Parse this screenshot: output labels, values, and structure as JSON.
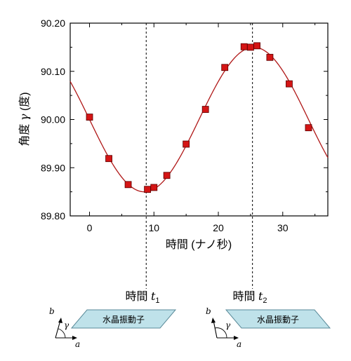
{
  "chart_data": {
    "type": "scatter",
    "xlabel": "時間 (ナノ秒)",
    "ylabel_main": "角度",
    "ylabel_symbol": "γ",
    "ylabel_unit": "(度)",
    "xlim": [
      -3,
      37
    ],
    "ylim": [
      89.8,
      90.2
    ],
    "xticks": [
      0,
      10,
      20,
      30
    ],
    "yticks": [
      89.8,
      89.9,
      90.0,
      90.1,
      90.2
    ],
    "ytick_labels": [
      "89.80",
      "89.90",
      "90.00",
      "90.10",
      "90.20"
    ],
    "grid": false,
    "marker_color": "#d41515",
    "fit_color": "#b01818",
    "series": [
      {
        "x": [
          0,
          3,
          6,
          9,
          10,
          12,
          15,
          18,
          21,
          24,
          25,
          26,
          28,
          31,
          34
        ],
        "y": [
          90.005,
          89.919,
          89.865,
          89.855,
          89.859,
          89.884,
          89.949,
          90.021,
          90.108,
          90.151,
          90.15,
          90.153,
          90.129,
          90.074,
          89.983
        ]
      }
    ],
    "fit": {
      "type": "sinusoid",
      "mean": 90.0,
      "amplitude": 0.15,
      "period": 34.0,
      "phase_min_at": 8.5
    },
    "markers": [
      {
        "x": 8.8,
        "label": "時間",
        "symbol": "t",
        "subscript": "1"
      },
      {
        "x": 25.3,
        "label": "時間",
        "symbol": "t",
        "subscript": "2"
      }
    ]
  },
  "crystals": [
    {
      "label": "水晶振動子",
      "axis_a": "a",
      "axis_b": "b",
      "angle": "γ",
      "slant": "right"
    },
    {
      "label": "水晶振動子",
      "axis_a": "a",
      "axis_b": "b",
      "angle": "γ",
      "slant": "left"
    }
  ]
}
